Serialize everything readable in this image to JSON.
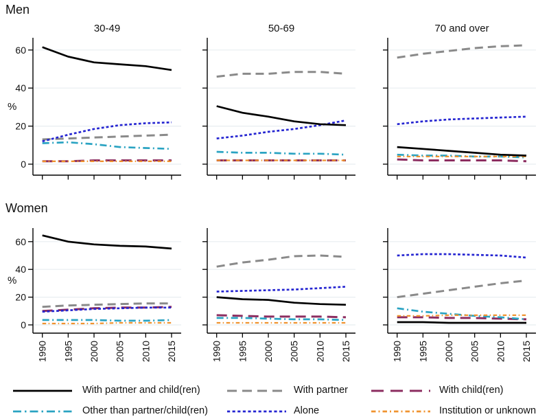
{
  "chart_data": {
    "type": "line",
    "layout": "small-multiples 2 rows x 3 columns",
    "rows": [
      "Men",
      "Women"
    ],
    "columns": [
      "30-49",
      "50-69",
      "70 and over"
    ],
    "ylabel": "%",
    "x": [
      1990,
      1995,
      2000,
      2005,
      2010,
      2015
    ],
    "x_tick_labels": [
      "1990",
      "1995",
      "2000",
      "2005",
      "2010",
      "2015"
    ],
    "y_ticks": [
      0,
      20,
      40,
      60
    ],
    "ylim": [
      0,
      66
    ],
    "grid": true,
    "legend_position": "bottom",
    "grid_color": "#e8edf0",
    "series": [
      {
        "id": "partner_child",
        "name": "With partner and child(ren)",
        "color": "#000000",
        "dash": "",
        "width": 2.7,
        "legend_dash": ""
      },
      {
        "id": "partner",
        "name": "With partner",
        "color": "#8a8a8a",
        "dash": "12 7",
        "width": 3,
        "legend_dash": "14 8"
      },
      {
        "id": "child",
        "name": "With child(ren)",
        "color": "#8c2d60",
        "dash": "15 8",
        "width": 3,
        "legend_dash": "18 10"
      },
      {
        "id": "other",
        "name": "Other than partner/child(ren)",
        "color": "#2aa3c2",
        "dash": "10 4.5 2 4.5",
        "width": 2.7,
        "legend_dash": "12 5 2.5 5"
      },
      {
        "id": "alone",
        "name": "Alone",
        "color": "#2525d1",
        "dash": "3.8 3",
        "width": 2.7,
        "legend_dash": "4.2 3.4"
      },
      {
        "id": "institution",
        "name": "Institution or unknown",
        "color": "#f0932f",
        "dash": "5.5 3.5 1.5 3.5",
        "width": 2.3,
        "legend_dash": "6.5 4 2 4"
      }
    ],
    "panels": [
      {
        "row": "Men",
        "column": "30-49",
        "values": {
          "partner_child": [
            61.5,
            56.5,
            53.5,
            52.5,
            51.5,
            49.5
          ],
          "partner": [
            13,
            13.5,
            14,
            14.5,
            15,
            15.5
          ],
          "child": [
            1.5,
            1.5,
            2,
            2,
            2,
            2
          ],
          "other": [
            11,
            11.5,
            10.5,
            9,
            8.5,
            8
          ],
          "alone": [
            12,
            15.5,
            18.5,
            20.5,
            21.5,
            22
          ],
          "institution": [
            1.5,
            1.5,
            1.5,
            1.5,
            1.5,
            1.5
          ]
        }
      },
      {
        "row": "Men",
        "column": "50-69",
        "values": {
          "partner_child": [
            30.5,
            27,
            25,
            22.5,
            21,
            20.5
          ],
          "partner": [
            46,
            47.5,
            47.5,
            48.5,
            48.5,
            47.5
          ],
          "child": [
            2,
            2,
            2,
            2,
            2,
            2
          ],
          "other": [
            6.5,
            6,
            6,
            5.5,
            5.5,
            5
          ],
          "alone": [
            13.5,
            15,
            17,
            18.5,
            20.5,
            23
          ],
          "institution": [
            2,
            2,
            2,
            2,
            2,
            2
          ]
        }
      },
      {
        "row": "Men",
        "column": "70 and over",
        "values": {
          "partner_child": [
            9,
            8,
            7,
            6,
            5,
            4.5
          ],
          "partner": [
            56,
            58,
            59.5,
            61,
            62,
            62.5
          ],
          "child": [
            2.5,
            2,
            2,
            2,
            2,
            1.5
          ],
          "other": [
            5,
            4.5,
            4.5,
            4,
            4,
            3.5
          ],
          "alone": [
            21,
            22.5,
            23.5,
            24,
            24.5,
            25
          ],
          "institution": [
            4,
            4,
            4,
            4,
            4,
            4
          ]
        }
      },
      {
        "row": "Women",
        "column": "30-49",
        "values": {
          "partner_child": [
            64.5,
            60,
            58,
            57,
            56.5,
            55
          ],
          "partner": [
            13,
            14,
            14.5,
            15,
            15.5,
            15.5
          ],
          "child": [
            10,
            11,
            12,
            12.5,
            12.5,
            13
          ],
          "other": [
            3.5,
            3.5,
            3.5,
            3,
            3,
            3.5
          ],
          "alone": [
            9.5,
            10.5,
            11.5,
            12,
            12.5,
            12.5
          ],
          "institution": [
            1,
            1,
            1,
            1.5,
            1.5,
            1.5
          ]
        }
      },
      {
        "row": "Women",
        "column": "50-69",
        "values": {
          "partner_child": [
            20,
            18.5,
            18,
            16,
            15,
            14.5
          ],
          "partner": [
            42,
            45,
            47,
            49.5,
            50,
            49
          ],
          "child": [
            7,
            6.5,
            6,
            6,
            6,
            5.5
          ],
          "other": [
            5,
            5,
            4.5,
            4,
            4,
            3.5
          ],
          "alone": [
            24,
            24.5,
            25,
            25.5,
            26.5,
            27.5
          ],
          "institution": [
            1.5,
            1.5,
            1.5,
            1.5,
            1.5,
            1.5
          ]
        }
      },
      {
        "row": "Women",
        "column": "70 and over",
        "values": {
          "partner_child": [
            2,
            2,
            1.5,
            1.5,
            1.5,
            1.5
          ],
          "partner": [
            20,
            22.5,
            25,
            27.5,
            30,
            32
          ],
          "child": [
            5.5,
            5.5,
            5,
            5,
            4.5,
            4
          ],
          "other": [
            12,
            9.5,
            8,
            6.5,
            5.5,
            4
          ],
          "alone": [
            50,
            51,
            51,
            50.5,
            50,
            48.5
          ],
          "institution": [
            6.5,
            6.5,
            7,
            7,
            7,
            7
          ]
        }
      }
    ]
  }
}
